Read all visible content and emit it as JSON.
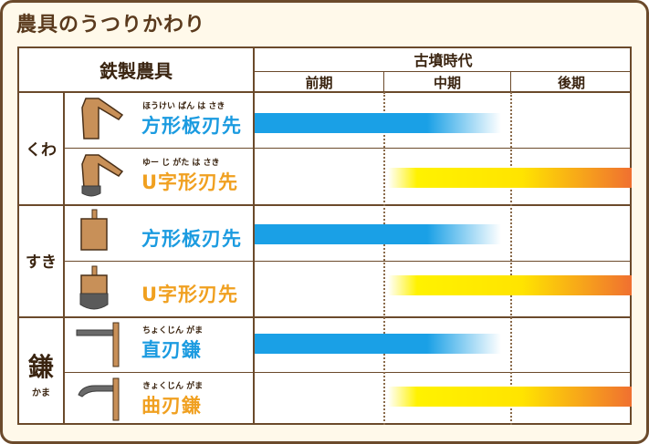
{
  "title": "農具のうつりかわり",
  "header": {
    "tools_label": "鉄製農具",
    "era_label": "古墳時代",
    "periods": [
      "前期",
      "中期",
      "後期"
    ]
  },
  "categories": [
    {
      "label": "くわ"
    },
    {
      "label": "すき"
    },
    {
      "label": "鎌",
      "ruby": "かま"
    }
  ],
  "rows": [
    {
      "name": "方形板刃先",
      "ruby": "ほうけい ばん は さき",
      "color": "#1b9be0",
      "bar": "blue",
      "periods": [
        "前期",
        "中期"
      ]
    },
    {
      "name": "U字形刃先",
      "ruby": "ゆー じ がた は さき",
      "color": "#f0a020",
      "bar": "yellow",
      "periods": [
        "中期",
        "後期"
      ]
    },
    {
      "name": "方形板刃先",
      "ruby": "",
      "color": "#1b9be0",
      "bar": "blue",
      "periods": [
        "前期",
        "中期"
      ]
    },
    {
      "name": "U字形刃先",
      "ruby": "",
      "color": "#f0a020",
      "bar": "yellow",
      "periods": [
        "中期",
        "後期"
      ]
    },
    {
      "name": "直刃鎌",
      "ruby": "ちょくじん がま",
      "color": "#1b9be0",
      "bar": "blue",
      "periods": [
        "前期",
        "中期"
      ]
    },
    {
      "name": "曲刃鎌",
      "ruby": "きょくじん がま",
      "color": "#f0a020",
      "bar": "yellow",
      "periods": [
        "中期",
        "後期"
      ]
    }
  ],
  "colors": {
    "frame": "#6b4a2b",
    "background": "#fff9ea",
    "blue_bar": "#1aa0e6",
    "yellow_bar": "#fff200",
    "orange_end": "#f07030"
  },
  "icons": [
    "hoe-square-blade-icon",
    "hoe-u-blade-icon",
    "spade-square-blade-icon",
    "spade-u-blade-icon",
    "straight-sickle-icon",
    "curved-sickle-icon"
  ]
}
